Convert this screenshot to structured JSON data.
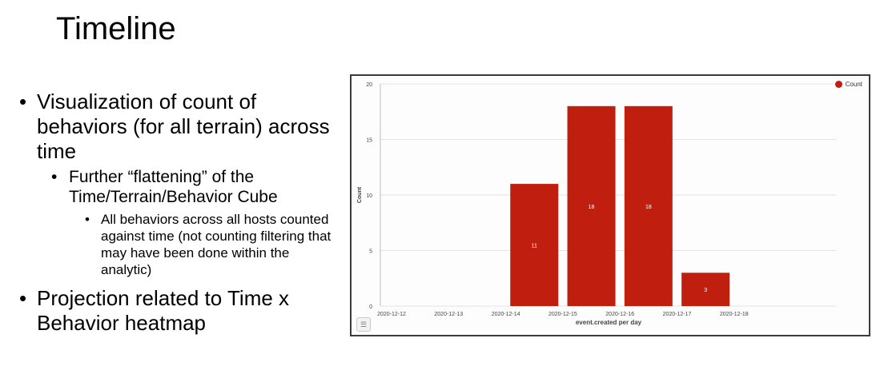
{
  "slide": {
    "title": "Timeline",
    "bullet_1": "Visualization of count of behaviors (for all terrain) across time",
    "bullet_1_1": "Further “flattening” of the Time/Terrain/Behavior Cube",
    "bullet_1_1_1": "All behaviors across all hosts counted against time (not counting filtering that may have been done within the analytic)",
    "bullet_2": "Projection related to Time x Behavior heatmap"
  },
  "chart_data": {
    "type": "bar",
    "categories": [
      "2020-12-12",
      "2020-12-13",
      "2020-12-14",
      "2020-12-15",
      "2020-12-16",
      "2020-12-17",
      "2020-12-18"
    ],
    "series": [
      {
        "name": "Count",
        "color": "#c01e0f",
        "values": [
          0,
          0,
          11,
          18,
          18,
          3,
          0
        ]
      }
    ],
    "bar_labels": [
      "",
      "",
      "11",
      "18",
      "18",
      "3",
      ""
    ],
    "xlabel": "event.created per day",
    "ylabel": "Count",
    "ylim": [
      0,
      20
    ],
    "yticks": [
      "0",
      "5",
      "10",
      "15",
      "20"
    ],
    "grid": true,
    "legend": "top-right",
    "legend_icon": "circle"
  },
  "toolbar": {
    "legend_toggle_icon": "list-icon"
  }
}
